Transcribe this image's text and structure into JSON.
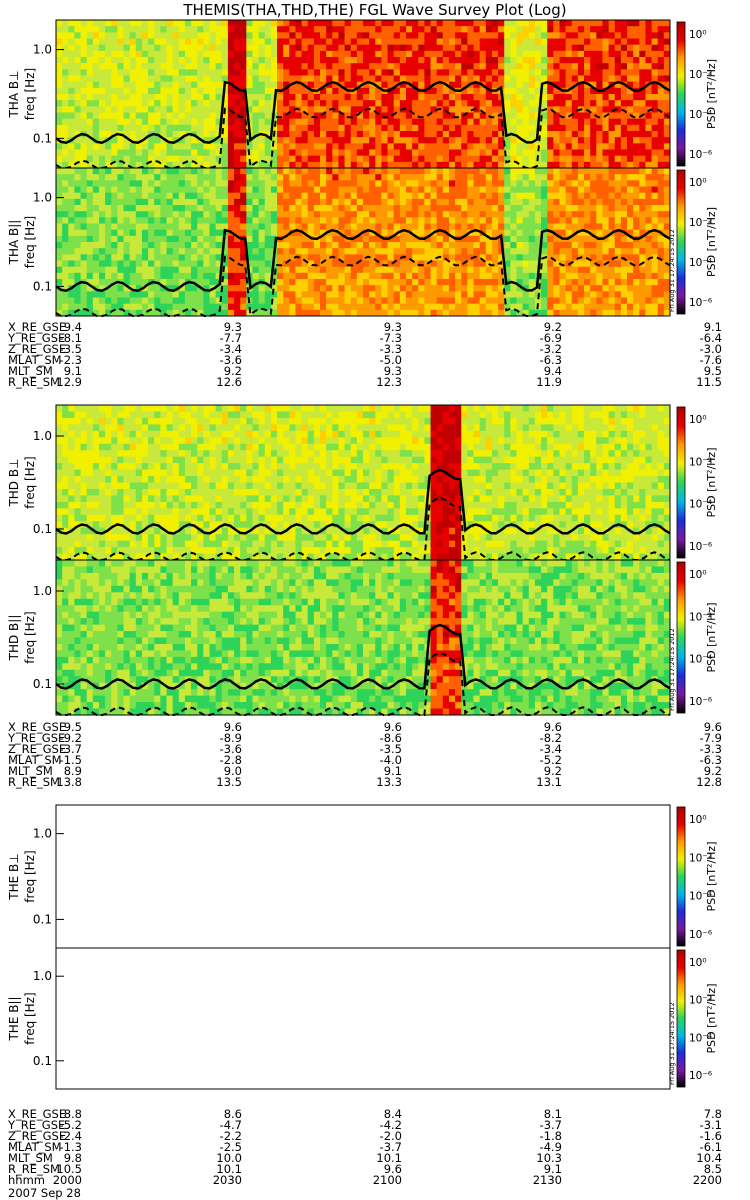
{
  "title": "THEMIS(THA,THD,THE) FGL Wave Survey Plot (Log)",
  "colorbar": {
    "label": "PSD [nT²/Hz]",
    "ticks": [
      "10⁰",
      "10⁻²",
      "10⁻⁴",
      "10⁻⁶"
    ],
    "colors": [
      "#000000",
      "#7a1aa0",
      "#1a2fd8",
      "#00b8e6",
      "#2ed35a",
      "#f0f000",
      "#ff9900",
      "#e60000",
      "#b00000"
    ]
  },
  "stamp": "Fri Aug 31 17:24:15 2012",
  "chart_data": [
    {
      "type": "heatmap",
      "id": "tha-bperp",
      "ylabel": "THA B⊥",
      "yaxis": "freq [Hz]",
      "yscale": "log",
      "yticks": [
        "1.0",
        "0.1"
      ],
      "has_data": true
    },
    {
      "type": "heatmap",
      "id": "tha-bpar",
      "ylabel": "THA B||",
      "yaxis": "freq [Hz]",
      "yscale": "log",
      "yticks": [
        "1.0",
        "0.1"
      ],
      "has_data": true
    },
    {
      "type": "heatmap",
      "id": "thd-bperp",
      "ylabel": "THD B⊥",
      "yaxis": "freq [Hz]",
      "yscale": "log",
      "yticks": [
        "1.0",
        "0.1"
      ],
      "has_data": true
    },
    {
      "type": "heatmap",
      "id": "thd-bpar",
      "ylabel": "THD B||",
      "yaxis": "freq [Hz]",
      "yscale": "log",
      "yticks": [
        "1.0",
        "0.1"
      ],
      "has_data": true
    },
    {
      "type": "heatmap",
      "id": "the-bperp",
      "ylabel": "THE B⊥",
      "yaxis": "freq [Hz]",
      "yscale": "log",
      "yticks": [
        "1.0",
        "0.1"
      ],
      "has_data": false
    },
    {
      "type": "heatmap",
      "id": "the-bpar",
      "ylabel": "THE B||",
      "yaxis": "freq [Hz]",
      "yscale": "log",
      "yticks": [
        "1.0",
        "0.1"
      ],
      "has_data": false
    }
  ],
  "ephemeris": [
    {
      "probe": "THA",
      "rows": [
        {
          "label": "X_RE_GSE",
          "values": [
            "9.4",
            "9.3",
            "9.3",
            "9.2",
            "9.1"
          ]
        },
        {
          "label": "Y_RE_GSE",
          "values": [
            "-8.1",
            "-7.7",
            "-7.3",
            "-6.9",
            "-6.4"
          ]
        },
        {
          "label": "Z_RE_GSE",
          "values": [
            "-3.5",
            "-3.4",
            "-3.3",
            "-3.2",
            "-3.0"
          ]
        },
        {
          "label": "MLAT_SM",
          "values": [
            "-2.3",
            "-3.6",
            "-5.0",
            "-6.3",
            "-7.6"
          ]
        },
        {
          "label": "MLT_SM",
          "values": [
            "9.1",
            "9.2",
            "9.3",
            "9.4",
            "9.5"
          ]
        },
        {
          "label": "R_RE_SM",
          "values": [
            "12.9",
            "12.6",
            "12.3",
            "11.9",
            "11.5"
          ]
        }
      ]
    },
    {
      "probe": "THD",
      "rows": [
        {
          "label": "X_RE_GSE",
          "values": [
            "9.5",
            "9.6",
            "9.6",
            "9.6",
            "9.6"
          ]
        },
        {
          "label": "Y_RE_GSE",
          "values": [
            "-9.2",
            "-8.9",
            "-8.6",
            "-8.2",
            "-7.9"
          ]
        },
        {
          "label": "Z_RE_GSE",
          "values": [
            "-3.7",
            "-3.6",
            "-3.5",
            "-3.4",
            "-3.3"
          ]
        },
        {
          "label": "MLAT_SM",
          "values": [
            "-1.5",
            "-2.8",
            "-4.0",
            "-5.2",
            "-6.3"
          ]
        },
        {
          "label": "MLT_SM",
          "values": [
            "8.9",
            "9.0",
            "9.1",
            "9.2",
            "9.2"
          ]
        },
        {
          "label": "R_RE_SM",
          "values": [
            "13.8",
            "13.5",
            "13.3",
            "13.1",
            "12.8"
          ]
        }
      ]
    },
    {
      "probe": "THE",
      "rows": [
        {
          "label": "X_RE_GSE",
          "values": [
            "8.8",
            "8.6",
            "8.4",
            "8.1",
            "7.8"
          ]
        },
        {
          "label": "Y_RE_GSE",
          "values": [
            "-5.2",
            "-4.7",
            "-4.2",
            "-3.7",
            "-3.1"
          ]
        },
        {
          "label": "Z_RE_GSE",
          "values": [
            "-2.4",
            "-2.2",
            "-2.0",
            "-1.8",
            "-1.6"
          ]
        },
        {
          "label": "MLAT_SM",
          "values": [
            "-1.3",
            "-2.5",
            "-3.7",
            "-4.9",
            "-6.1"
          ]
        },
        {
          "label": "MLT_SM",
          "values": [
            "9.8",
            "10.0",
            "10.1",
            "10.3",
            "10.4"
          ]
        },
        {
          "label": "R_RE_SM",
          "values": [
            "10.5",
            "10.1",
            "9.6",
            "9.1",
            "8.5"
          ]
        },
        {
          "label": "hhmm",
          "values": [
            "2000",
            "2030",
            "2100",
            "2130",
            "2200"
          ]
        }
      ]
    }
  ],
  "date": "2007 Sep 28"
}
